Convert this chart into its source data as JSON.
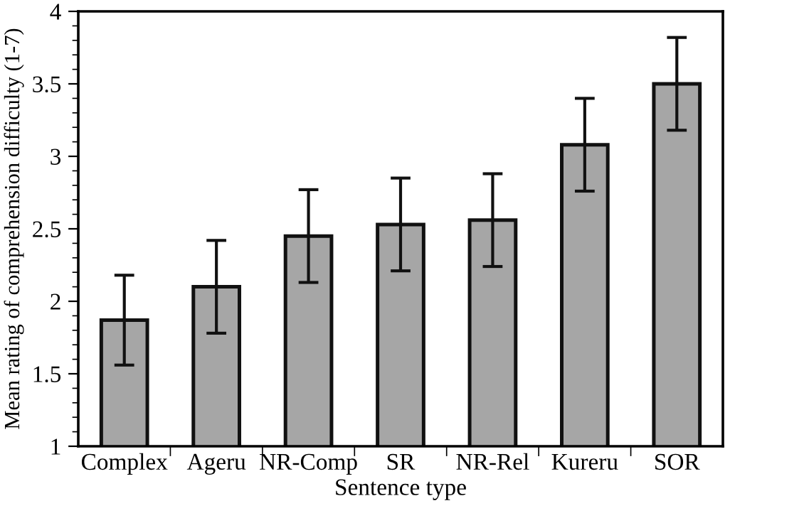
{
  "chart_data": {
    "type": "bar",
    "xlabel": "Sentence type",
    "ylabel": "Mean rating of comprehension difficulty (1-7)",
    "categories": [
      "Complex",
      "Ageru",
      "NR-Comp",
      "SR",
      "NR-Rel",
      "Kureru",
      "SOR"
    ],
    "values": [
      1.87,
      2.1,
      2.45,
      2.53,
      2.56,
      3.08,
      3.5
    ],
    "errors": [
      0.31,
      0.32,
      0.32,
      0.32,
      0.32,
      0.32,
      0.32
    ],
    "color": "#a6a6a6",
    "ylim": [
      1,
      4
    ],
    "yticks": [
      1,
      1.5,
      2,
      2.5,
      3,
      3.5,
      4
    ],
    "grid": false
  }
}
